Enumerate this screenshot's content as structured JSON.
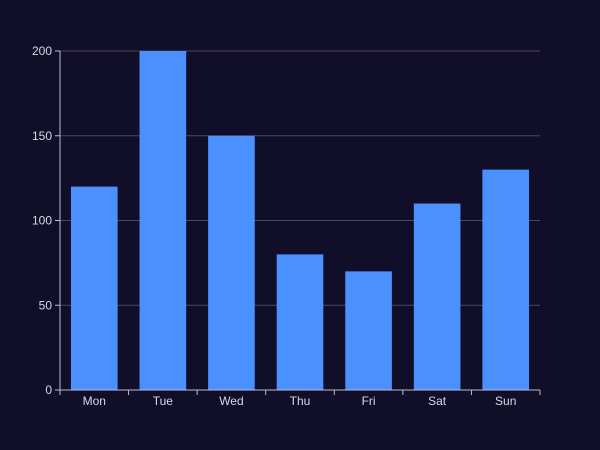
{
  "colors": {
    "background": "#110e2a",
    "bar": "#4a90ff",
    "gridline": "#4a4763",
    "axis": "#bcbccc",
    "text": "#d8d8e4"
  },
  "chart_data": {
    "type": "bar",
    "categories": [
      "Mon",
      "Tue",
      "Wed",
      "Thu",
      "Fri",
      "Sat",
      "Sun"
    ],
    "values": [
      120,
      200,
      150,
      80,
      70,
      110,
      130
    ],
    "yticks": [
      0,
      50,
      100,
      150,
      200
    ],
    "ylim": [
      0,
      200
    ],
    "grid": true,
    "title": "",
    "xlabel": "",
    "ylabel": ""
  }
}
